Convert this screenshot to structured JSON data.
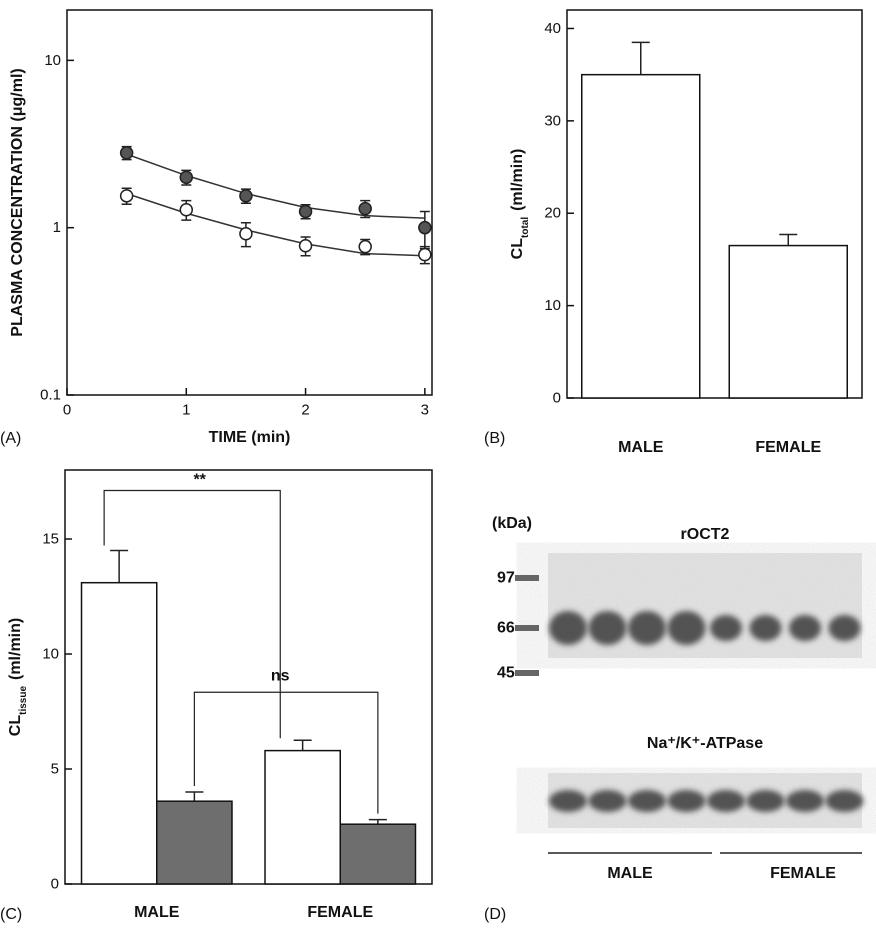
{
  "chart_data": [
    {
      "type": "line",
      "panel_label": "(A)",
      "xlabel": "TIME (min)",
      "ylabel": "PLASMA CONCENTRATION (μg/ml)",
      "log_y": true,
      "x": [
        0.5,
        1,
        1.5,
        2,
        2.5,
        3
      ],
      "xlim": [
        0,
        3.06
      ],
      "xticks": [
        0,
        1,
        2,
        3
      ],
      "ylim": [
        0.1,
        20
      ],
      "yticks": [
        0.1,
        1,
        10
      ],
      "series": [
        {
          "color": "#555555",
          "values": [
            2.8,
            2.0,
            1.55,
            1.25,
            1.3,
            1.0
          ],
          "errors": [
            0.25,
            0.2,
            0.15,
            0.12,
            0.15,
            0.25
          ],
          "fit": [
            2.75,
            2.05,
            1.6,
            1.32,
            1.18,
            1.14
          ]
        },
        {
          "color": "#ffffff",
          "values": [
            1.55,
            1.28,
            0.92,
            0.78,
            0.77,
            0.69
          ],
          "errors": [
            0.17,
            0.17,
            0.15,
            0.1,
            0.08,
            0.08
          ],
          "fit": [
            1.6,
            1.22,
            0.97,
            0.8,
            0.7,
            0.68
          ]
        }
      ]
    },
    {
      "type": "bar",
      "panel_label": "(B)",
      "ylabel": {
        "main": "CL",
        "sub": "total",
        "unit": "(ml/min)"
      },
      "categories": [
        "MALE",
        "FEMALE"
      ],
      "values": [
        35,
        16.5
      ],
      "errors": [
        3.5,
        1.2
      ],
      "color": "#ffffff",
      "ylim": [
        0,
        42
      ],
      "yticks": [
        0,
        10,
        20,
        30,
        40
      ]
    },
    {
      "type": "bar",
      "panel_label": "(C)",
      "ylabel": {
        "main": "CL",
        "sub": "tissue",
        "unit": "(ml/min)"
      },
      "categories": [
        "MALE",
        "FEMALE"
      ],
      "series": [
        {
          "color": "#ffffff",
          "values": [
            13.1,
            5.8
          ],
          "errors": [
            1.4,
            0.45
          ]
        },
        {
          "color": "#6e6e6e",
          "values": [
            3.6,
            2.6
          ],
          "errors": [
            0.4,
            0.2
          ]
        }
      ],
      "ylim": [
        0,
        18
      ],
      "yticks": [
        0,
        5,
        10,
        15
      ],
      "annotations": [
        "**",
        "ns"
      ]
    }
  ],
  "blot": {
    "panel_label": "(D)",
    "unit": "(kDa)",
    "markers": [
      97,
      66,
      45
    ],
    "target": "rOCT2",
    "control": "Na⁺/K⁺-ATPase",
    "groups": [
      "MALE",
      "FEMALE"
    ]
  }
}
